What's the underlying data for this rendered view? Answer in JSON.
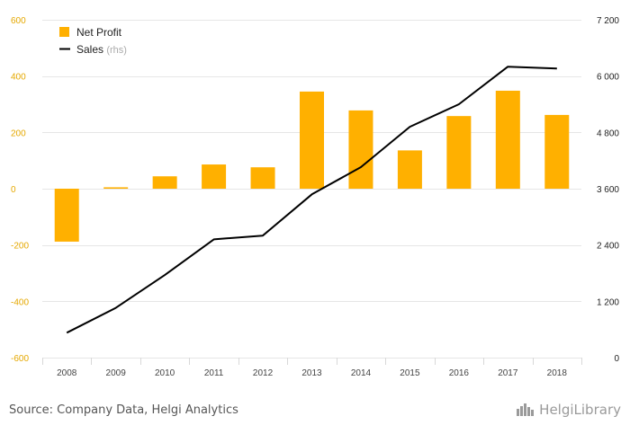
{
  "chart_data": {
    "type": "bar+line",
    "categories": [
      "2008",
      "2009",
      "2010",
      "2011",
      "2012",
      "2013",
      "2014",
      "2015",
      "2016",
      "2017",
      "2018"
    ],
    "series": [
      {
        "name": "Net Profit",
        "type": "bar",
        "axis": "left",
        "color": "#FFB000",
        "values": [
          -188,
          5,
          44,
          86,
          76,
          345,
          278,
          136,
          258,
          348,
          262
        ]
      },
      {
        "name": "Sales",
        "type": "line",
        "axis": "right",
        "color": "#000000",
        "values": [
          530,
          1060,
          1760,
          2520,
          2600,
          3480,
          4060,
          4920,
          5400,
          6200,
          6160
        ]
      }
    ],
    "y_left": {
      "min": -600,
      "max": 600,
      "ticks": [
        600,
        400,
        200,
        0,
        -200,
        -400,
        -600
      ],
      "tick_labels": [
        "600",
        "400",
        "200",
        "0",
        "-200",
        "-400",
        "-600"
      ],
      "color": "#E5A800"
    },
    "y_right": {
      "min": 0,
      "max": 7200,
      "ticks": [
        7200,
        6000,
        4800,
        3600,
        2400,
        1200,
        0
      ],
      "tick_labels": [
        "7 200",
        "6 000",
        "4 800",
        "3 600",
        "2 400",
        "1 200",
        "0"
      ]
    },
    "legend": {
      "position": "top-left",
      "items": [
        {
          "label": "Net Profit",
          "suffix": ""
        },
        {
          "label": "Sales",
          "suffix": "(rhs)"
        }
      ]
    },
    "grid": true
  },
  "footer": {
    "source": "Source: Company Data, Helgi Analytics"
  },
  "brand": {
    "name": "HelgiLibrary",
    "icon": "helgi-logo-icon"
  }
}
